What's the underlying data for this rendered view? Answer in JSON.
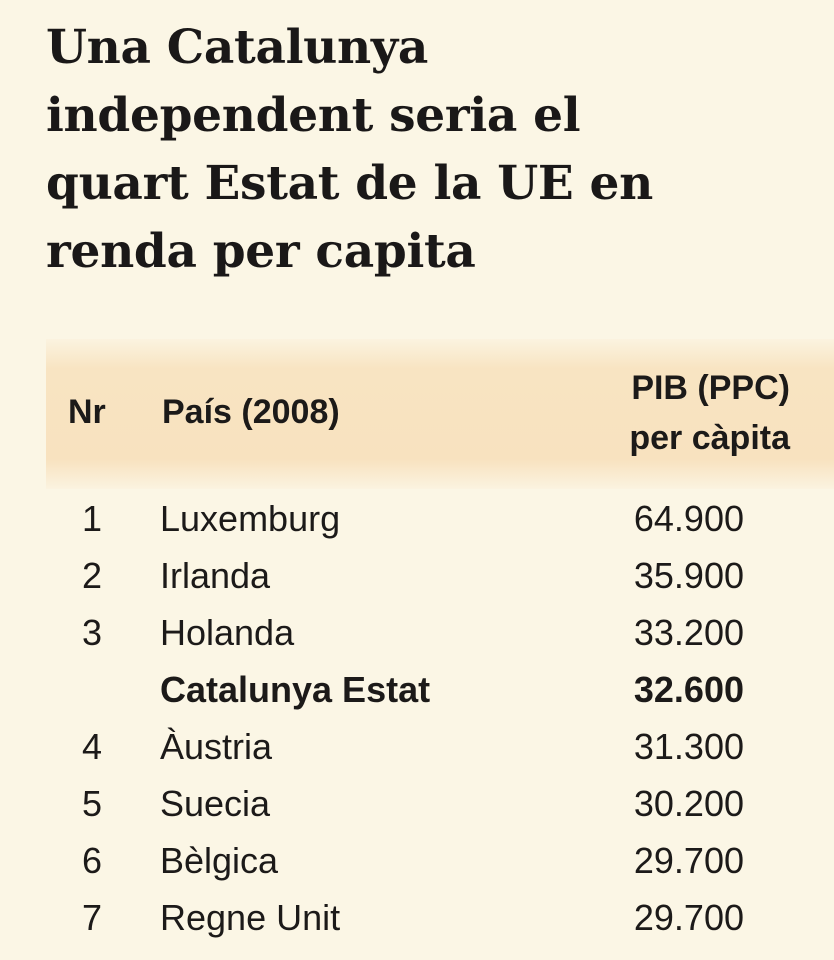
{
  "headline": {
    "line1": "Una Catalunya",
    "line2": "independent seria el",
    "line3": "quart Estat de la UE en",
    "line4": "renda per capita"
  },
  "table": {
    "header": {
      "nr": "Nr",
      "country": "País (2008)",
      "value_line1": "PIB (PPC)",
      "value_line2": "per càpita"
    },
    "rows": [
      {
        "nr": "1",
        "country": "Luxemburg",
        "value": "64.900"
      },
      {
        "nr": "2",
        "country": "Irlanda",
        "value": "35.900"
      },
      {
        "nr": "3",
        "country": "Holanda",
        "value": "33.200"
      },
      {
        "nr": "",
        "country": "Catalunya Estat",
        "value": "32.600",
        "highlight": true
      },
      {
        "nr": "4",
        "country": "Àustria",
        "value": "31.300"
      },
      {
        "nr": "5",
        "country": "Suecia",
        "value": "30.200"
      },
      {
        "nr": "6",
        "country": "Bèlgica",
        "value": "29.700"
      },
      {
        "nr": "7",
        "country": "Regne Unit",
        "value": "29.700"
      }
    ]
  },
  "colors": {
    "background": "#fbf6e5",
    "header_band": "#f8e2bf",
    "text": "#1c1a19"
  }
}
